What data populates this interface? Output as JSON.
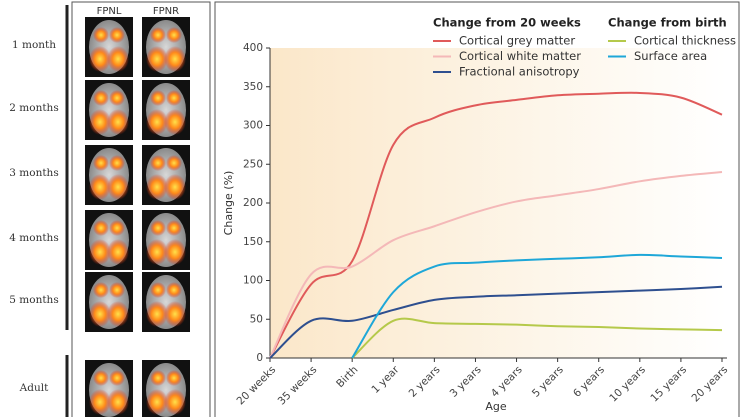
{
  "panel": {
    "columns": [
      "FPNL",
      "FPNR"
    ],
    "rows": [
      "1 month",
      "2 months",
      "3 months",
      "4 months",
      "5 months",
      "Adult"
    ]
  },
  "chart_data": {
    "type": "line",
    "x_label": "Age",
    "y_label": "Change (%)",
    "categories": [
      "20 weeks",
      "35 weeks",
      "Birth",
      "1 year",
      "2 years",
      "3 years",
      "4 years",
      "5 years",
      "6 years",
      "10 years",
      "15 years",
      "20 years"
    ],
    "ylim": [
      0,
      400
    ],
    "yticks": [
      0,
      50,
      100,
      150,
      200,
      250,
      300,
      350,
      400
    ],
    "legend_groups": [
      {
        "title": "Change from 20 weeks",
        "series": [
          0,
          1,
          2
        ]
      },
      {
        "title": "Change from birth",
        "series": [
          3,
          4
        ]
      }
    ],
    "series": [
      {
        "name": "Cortical grey matter",
        "color": "#e05a5a",
        "values": [
          0,
          95,
          125,
          275,
          310,
          326,
          333,
          339,
          341,
          342,
          336,
          314
        ]
      },
      {
        "name": "Cortical white matter",
        "color": "#f4b8b8",
        "values": [
          0,
          108,
          118,
          152,
          170,
          188,
          202,
          210,
          218,
          228,
          235,
          240
        ]
      },
      {
        "name": "Fractional anisotropy",
        "color": "#2e4f8f",
        "values": [
          0,
          48,
          48,
          62,
          75,
          79,
          81,
          83,
          85,
          87,
          89,
          92
        ]
      },
      {
        "name": "Cortical thickness",
        "color": "#b5c94a",
        "values": [
          null,
          null,
          0,
          48,
          45,
          44,
          43,
          41,
          40,
          38,
          37,
          36
        ]
      },
      {
        "name": "Surface area",
        "color": "#1ea7d8",
        "values": [
          null,
          null,
          0,
          85,
          118,
          123,
          126,
          128,
          130,
          133,
          131,
          129
        ]
      }
    ]
  }
}
